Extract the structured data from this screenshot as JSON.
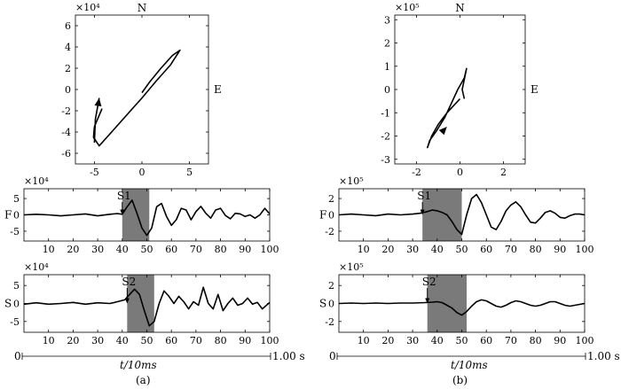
{
  "colors": {
    "trace": "#000000",
    "shade": "#7a7a7a",
    "axis": "#000000"
  },
  "panel_labels": {
    "a": "(a)",
    "b": "(b)"
  },
  "time_axis": {
    "start": "0",
    "end": "1.00 s",
    "label": "t/10ms"
  },
  "chart_data": [
    {
      "id": "a_hodogram",
      "type": "line",
      "title": "N",
      "side_label": "E",
      "exponent": "×10⁴",
      "xlim": [
        -7,
        7
      ],
      "ylim": [
        -7,
        7
      ],
      "xticks": [
        -5,
        0,
        5
      ],
      "yticks": [
        -6,
        -4,
        -2,
        0,
        2,
        4,
        6
      ],
      "series": [
        {
          "name": "main",
          "x": [
            0,
            0.8,
            2.0,
            3.2,
            4.0,
            3.0,
            1.5,
            0.0,
            -1.5,
            -3.0,
            -4.5,
            -5.1,
            -5.0,
            -4.2
          ],
          "y": [
            -0.3,
            0.7,
            2.0,
            3.2,
            3.7,
            2.3,
            0.8,
            -0.8,
            -2.3,
            -3.8,
            -5.3,
            -4.5,
            -3.5,
            -1.8
          ]
        },
        {
          "name": "arrow_tail",
          "x": [
            -5.0,
            -4.9,
            -4.5
          ],
          "y": [
            -5.0,
            -2.8,
            -0.8
          ]
        }
      ],
      "arrow": {
        "at": [
          -4.5,
          -0.8
        ],
        "from": [
          -4.7,
          -2.0
        ]
      }
    },
    {
      "id": "b_hodogram",
      "type": "line",
      "title": "N",
      "side_label": "E",
      "exponent": "×10⁵",
      "xlim": [
        -3,
        3
      ],
      "ylim": [
        -3.2,
        3.2
      ],
      "xticks": [
        -2,
        0,
        2
      ],
      "yticks": [
        -3,
        -2,
        -1,
        0,
        1,
        2,
        3
      ],
      "series": [
        {
          "name": "main",
          "x": [
            0.0,
            -0.2,
            -0.6,
            -1.0,
            -1.3,
            -1.5,
            -1.4,
            -1.1,
            -0.7,
            -0.4,
            -0.1,
            0.2,
            0.3,
            0.1,
            0.2
          ],
          "y": [
            -0.4,
            -0.6,
            -1.0,
            -1.5,
            -2.0,
            -2.5,
            -2.2,
            -1.8,
            -1.2,
            -0.6,
            0.0,
            0.5,
            0.9,
            0.0,
            -0.4
          ]
        }
      ],
      "arrow": {
        "at": [
          -0.6,
          -1.6
        ],
        "from": [
          -1.0,
          -2.0
        ]
      }
    },
    {
      "id": "a_F",
      "type": "line",
      "ylabel": "F",
      "exponent": "×10⁴",
      "xlim": [
        0,
        100
      ],
      "ylim": [
        -8,
        8
      ],
      "yticks": [
        -5,
        0,
        5
      ],
      "xticks": [
        10,
        20,
        30,
        40,
        50,
        60,
        70,
        80,
        90,
        100
      ],
      "shade": [
        40,
        51
      ],
      "marker": {
        "label": "S1",
        "x": 40
      },
      "series": [
        {
          "name": "trace",
          "x": [
            0,
            5,
            10,
            15,
            20,
            25,
            30,
            35,
            38,
            40,
            42,
            44,
            46,
            48,
            50,
            52,
            54,
            56,
            58,
            60,
            62,
            64,
            66,
            68,
            70,
            72,
            74,
            76,
            78,
            80,
            82,
            84,
            86,
            88,
            90,
            92,
            94,
            96,
            98,
            100
          ],
          "y": [
            0,
            0.2,
            0,
            -0.3,
            0,
            0.3,
            -0.3,
            0.2,
            0.4,
            0.2,
            2.5,
            4.5,
            0.5,
            -4.0,
            -6.3,
            -4.0,
            2.5,
            3.5,
            -0.5,
            -3.2,
            -1.5,
            2.0,
            1.5,
            -1.5,
            1.0,
            2.6,
            0.5,
            -1.0,
            1.5,
            2.0,
            -0.2,
            -1.2,
            0.5,
            0.3,
            -0.5,
            0.0,
            -1.0,
            0.0,
            2.0,
            0.3
          ]
        }
      ]
    },
    {
      "id": "a_S",
      "type": "line",
      "ylabel": "S",
      "exponent": "×10⁴",
      "xlim": [
        0,
        100
      ],
      "ylim": [
        -8,
        8
      ],
      "yticks": [
        -5,
        0,
        5
      ],
      "xticks": [
        10,
        20,
        30,
        40,
        50,
        60,
        70,
        80,
        90,
        100
      ],
      "shade": [
        42,
        53
      ],
      "marker": {
        "label": "S2",
        "x": 42
      },
      "series": [
        {
          "name": "trace",
          "x": [
            0,
            5,
            10,
            15,
            20,
            25,
            30,
            35,
            38,
            41,
            43,
            45,
            47,
            49,
            51,
            53,
            55,
            57,
            59,
            61,
            63,
            65,
            67,
            69,
            71,
            73,
            75,
            77,
            79,
            81,
            83,
            85,
            87,
            89,
            91,
            93,
            95,
            97,
            100
          ],
          "y": [
            -0.2,
            0.2,
            -0.2,
            0,
            0.3,
            -0.2,
            0.2,
            0,
            0.5,
            1.0,
            2.5,
            4.0,
            2.5,
            -2.0,
            -6.2,
            -5.0,
            0.0,
            3.5,
            2.0,
            0.0,
            2.0,
            0.5,
            -1.5,
            0.5,
            -0.5,
            4.5,
            0.0,
            -1.5,
            2.5,
            -2.0,
            0.0,
            1.5,
            -0.5,
            0.0,
            1.5,
            -0.2,
            0.3,
            -1.5,
            0.3
          ]
        }
      ]
    },
    {
      "id": "b_F",
      "type": "line",
      "ylabel": "F",
      "exponent": "×10⁵",
      "xlim": [
        0,
        100
      ],
      "ylim": [
        -3.2,
        3.2
      ],
      "yticks": [
        -2,
        0,
        2
      ],
      "xticks": [
        10,
        20,
        30,
        40,
        50,
        60,
        70,
        80,
        90,
        100
      ],
      "shade": [
        34,
        50
      ],
      "marker": {
        "label": "S1",
        "x": 34
      },
      "series": [
        {
          "name": "trace",
          "x": [
            0,
            5,
            10,
            15,
            20,
            25,
            30,
            33,
            36,
            38,
            40,
            42,
            44,
            46,
            48,
            50,
            52,
            54,
            56,
            58,
            60,
            62,
            64,
            66,
            68,
            70,
            72,
            74,
            76,
            78,
            80,
            82,
            84,
            86,
            88,
            90,
            92,
            94,
            96,
            98,
            100
          ],
          "y": [
            0,
            0.1,
            0,
            -0.1,
            0.1,
            0,
            0.1,
            0.2,
            0.4,
            0.6,
            0.5,
            0.3,
            0.0,
            -0.8,
            -1.8,
            -2.4,
            0.0,
            2.0,
            2.5,
            1.5,
            0.0,
            -1.5,
            -1.8,
            -0.8,
            0.5,
            1.2,
            1.6,
            1.0,
            0.0,
            -0.9,
            -1.0,
            -0.4,
            0.3,
            0.5,
            0.2,
            -0.3,
            -0.4,
            -0.1,
            0.1,
            0.1,
            0.0
          ]
        }
      ]
    },
    {
      "id": "b_S",
      "type": "line",
      "ylabel": "S",
      "exponent": "×10⁵",
      "xlim": [
        0,
        100
      ],
      "ylim": [
        -3.2,
        3.2
      ],
      "yticks": [
        -2,
        0,
        2
      ],
      "xticks": [
        10,
        20,
        30,
        40,
        50,
        60,
        70,
        80,
        90,
        100
      ],
      "shade": [
        36,
        52
      ],
      "marker": {
        "label": "S2",
        "x": 36
      },
      "series": [
        {
          "name": "trace",
          "x": [
            0,
            5,
            10,
            15,
            20,
            25,
            30,
            35,
            38,
            40,
            42,
            44,
            46,
            48,
            50,
            52,
            54,
            56,
            58,
            60,
            62,
            64,
            66,
            68,
            70,
            72,
            74,
            76,
            78,
            80,
            82,
            84,
            86,
            88,
            90,
            92,
            94,
            96,
            98,
            100
          ],
          "y": [
            0,
            0.05,
            0,
            0.05,
            0,
            0.05,
            0.05,
            0.1,
            0.15,
            0.2,
            0.1,
            -0.2,
            -0.5,
            -1.0,
            -1.3,
            -0.9,
            -0.3,
            0.2,
            0.4,
            0.3,
            0.0,
            -0.3,
            -0.4,
            -0.2,
            0.1,
            0.3,
            0.2,
            0.0,
            -0.2,
            -0.3,
            -0.2,
            0.0,
            0.2,
            0.2,
            0.0,
            -0.2,
            -0.3,
            -0.2,
            -0.1,
            0.0
          ]
        }
      ]
    }
  ]
}
